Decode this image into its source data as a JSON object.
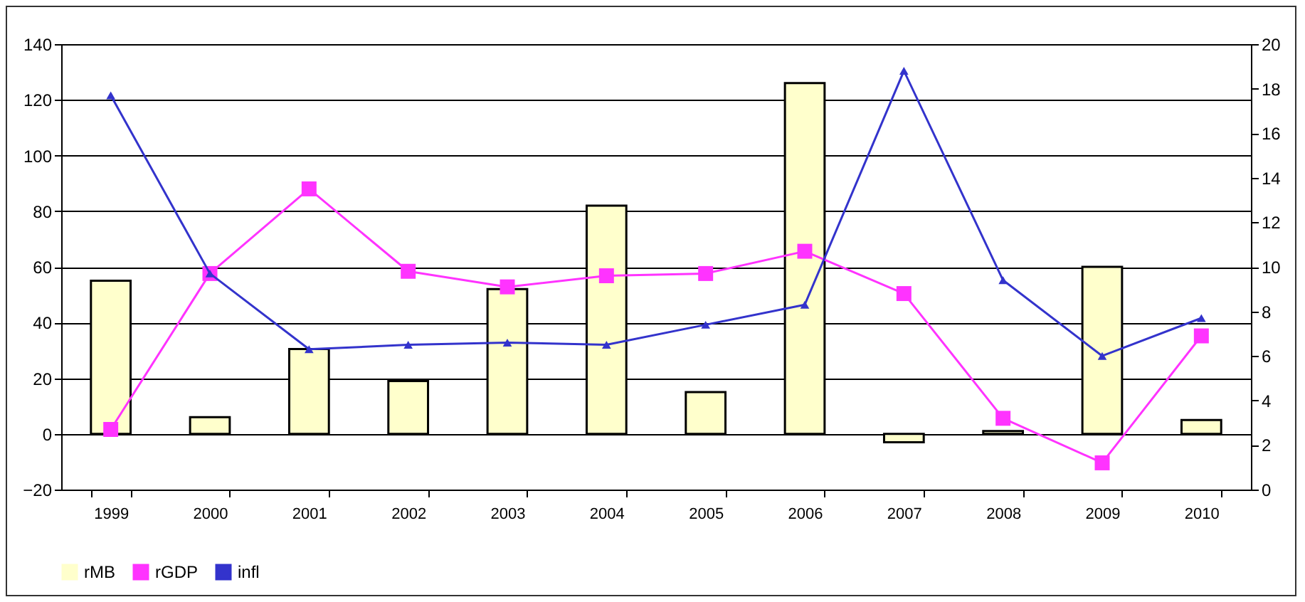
{
  "chart_data": {
    "type": "bar",
    "categories": [
      "1999",
      "2000",
      "2001",
      "2002",
      "2003",
      "2004",
      "2005",
      "2006",
      "2007",
      "2008",
      "2009",
      "2010"
    ],
    "series": [
      {
        "name": "rMB",
        "color": "#ffffcc",
        "values": [
          55,
          6,
          30.5,
          19,
          52,
          82,
          15,
          126,
          -3,
          1,
          60,
          5
        ]
      },
      {
        "name": "rGDP",
        "type": "line",
        "axis": "y2",
        "color": "#ff33ff",
        "marker": "square",
        "values": [
          2.7,
          9.7,
          13.5,
          9.8,
          9.1,
          9.6,
          9.7,
          10.7,
          8.8,
          3.2,
          1.2,
          6.9
        ]
      },
      {
        "name": "infl",
        "type": "line",
        "axis": "y2",
        "color": "#3333cc",
        "marker": "triangle",
        "values": [
          17.7,
          9.7,
          6.3,
          6.5,
          6.6,
          6.5,
          7.4,
          8.3,
          18.8,
          9.4,
          6.0,
          7.7
        ]
      }
    ],
    "ylim": [
      -20,
      140
    ],
    "yticks": [
      -20,
      0,
      20,
      40,
      60,
      80,
      100,
      120,
      140
    ],
    "y2lim": [
      0,
      20
    ],
    "y2ticks": [
      0,
      2,
      4,
      6,
      8,
      10,
      12,
      14,
      16,
      18,
      20
    ],
    "grid": "y",
    "legend": "bottom"
  }
}
